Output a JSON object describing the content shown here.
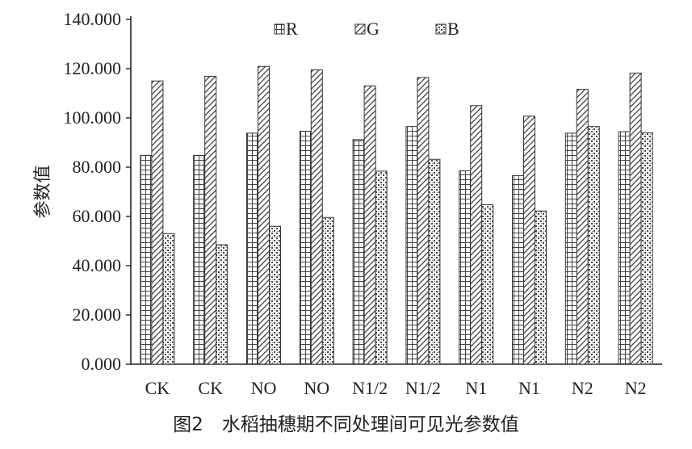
{
  "caption": "图2　水稻抽穗期不同处理间可见光参数值",
  "chart_data": {
    "type": "bar",
    "ylabel": "参数值",
    "xlabel": "",
    "ylim": [
      0,
      140
    ],
    "yticks": [
      "0.000",
      "20.000",
      "40.000",
      "60.000",
      "80.000",
      "100.000",
      "120.000",
      "140.000"
    ],
    "categories": [
      "CK",
      "CK",
      "NO",
      "NO",
      "N1/2",
      "N1/2",
      "N1",
      "N1",
      "N2",
      "N2"
    ],
    "series": [
      {
        "name": "R",
        "pattern": "grid",
        "values": [
          84.8,
          84.8,
          93.8,
          94.6,
          91.2,
          96.5,
          78.5,
          76.6,
          93.8,
          94.4
        ]
      },
      {
        "name": "G",
        "pattern": "diagonal",
        "values": [
          115.0,
          116.9,
          120.9,
          119.5,
          113.0,
          116.4,
          105.0,
          100.7,
          111.6,
          118.2
        ]
      },
      {
        "name": "B",
        "pattern": "dots",
        "values": [
          53.0,
          48.5,
          56.0,
          59.6,
          78.4,
          83.2,
          64.8,
          62.2,
          96.5,
          94.0
        ]
      }
    ],
    "legend_position": "top",
    "grid": false,
    "colors": {
      "axis": "#222222",
      "bar_fill": "#ffffff",
      "pattern": "#333333"
    }
  }
}
